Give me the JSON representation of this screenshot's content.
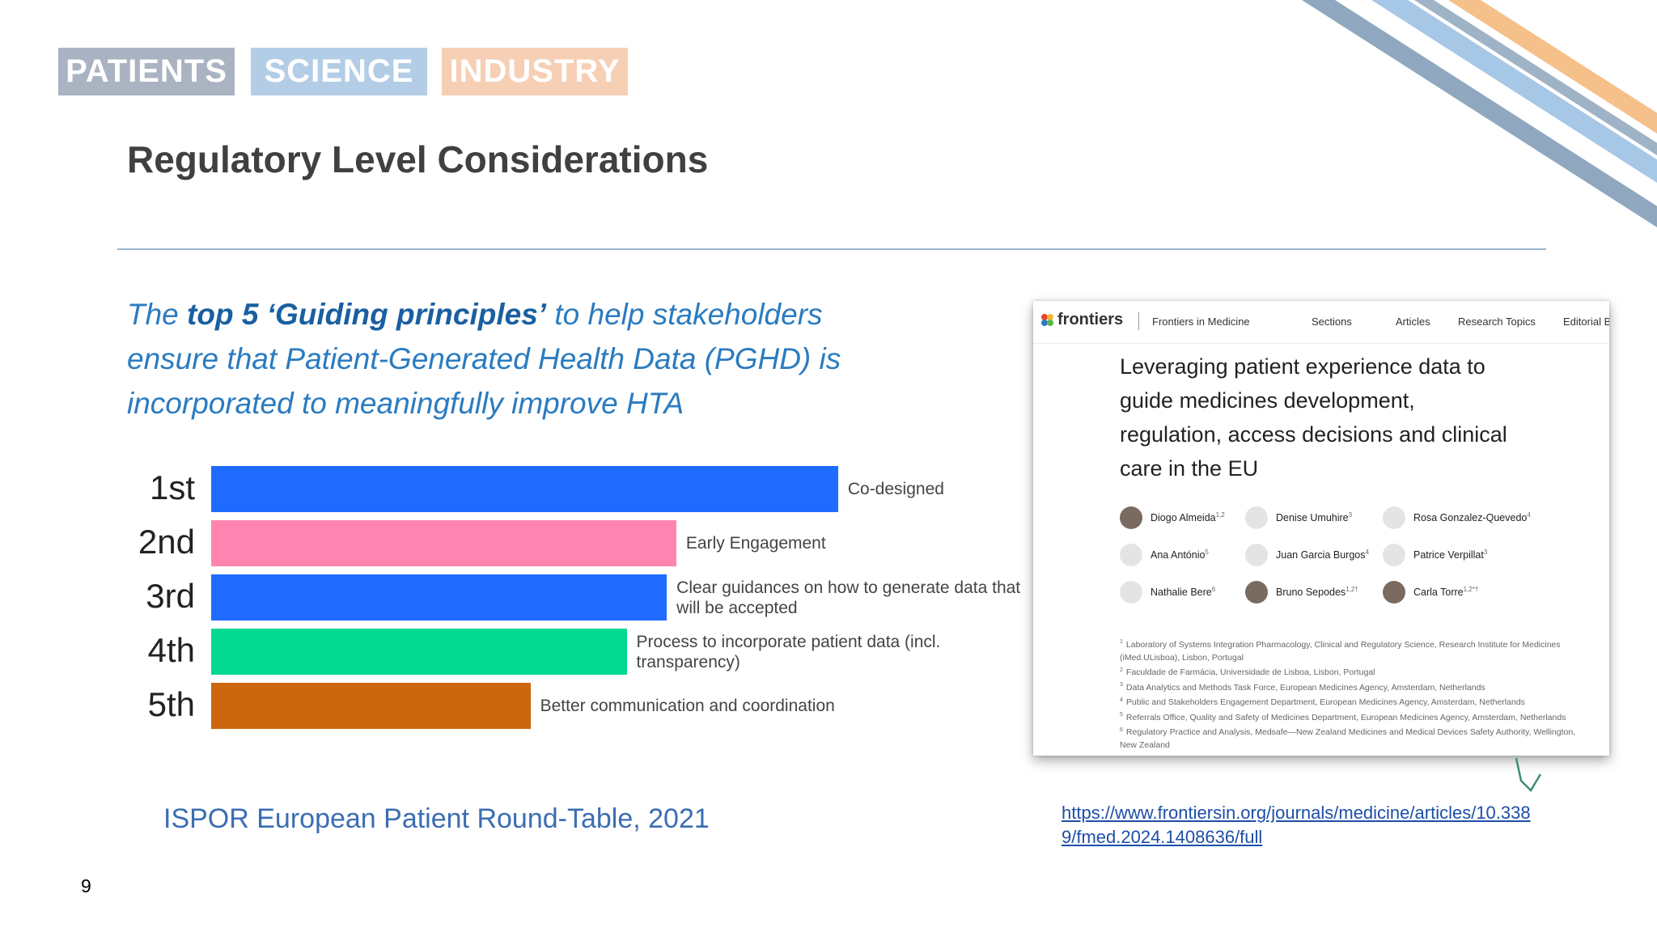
{
  "header": {
    "logos": [
      "PATIENTS",
      "SCIENCE",
      "INDUSTRY"
    ],
    "title": "Regulatory Level Considerations"
  },
  "intro": {
    "lines": [
      [
        "The ",
        "top 5 ‘Guiding principles’",
        " to help stakeholders"
      ],
      [
        "ensure that Patient-Generated Health Data (PGHD) is"
      ],
      [
        "incorporated to meaningfully improve HTA"
      ]
    ]
  },
  "chart_data": {
    "type": "bar",
    "categories": [
      "1st",
      "2nd",
      "3rd",
      "4th",
      "5th"
    ],
    "values": [
      593,
      440,
      431,
      393,
      302
    ],
    "colors": [
      "#1f6bff",
      "#ff85b0",
      "#1f6bff",
      "#00d98f",
      "#cc660f"
    ],
    "bar_labels": [
      "Co-designed",
      "Early Engagement",
      "Clear guidances on how to generate data that will be accepted",
      "Process to incorporate patient data (incl. transparency)",
      "Better communication and coordination"
    ],
    "xlim": [
      0,
      600
    ]
  },
  "source": "ISPOR European Patient Round-Table, 2021",
  "page_number": "9",
  "article": {
    "brand": "frontiers",
    "journal": "Frontiers in Medicine",
    "nav": [
      "Sections",
      "Articles",
      "Research Topics",
      "Editorial B"
    ],
    "title_lines": [
      "Leveraging patient experience data to",
      "guide medicines development,",
      "regulation, access decisions and clinical",
      "care in the EU"
    ],
    "authors": [
      {
        "name": "Diogo Almeida",
        "sup": "1,2"
      },
      {
        "name": "Denise Umuhire",
        "sup": "3"
      },
      {
        "name": "Rosa Gonzalez-Quevedo",
        "sup": "4"
      },
      {
        "name": "Ana António",
        "sup": "5"
      },
      {
        "name": "Juan Garcia Burgos",
        "sup": "4"
      },
      {
        "name": "Patrice Verpillat",
        "sup": "3"
      },
      {
        "name": "Nathalie Bere",
        "sup": "6"
      },
      {
        "name": "Bruno Sepodes",
        "sup": "1,2†"
      },
      {
        "name": "Carla Torre",
        "sup": "1,2*†"
      }
    ],
    "affiliations": [
      {
        "num": "1",
        "text": "Laboratory of Systems Integration Pharmacology, Clinical and Regulatory Science, Research Institute for Medicines (iMed.ULisboa), Lisbon, Portugal"
      },
      {
        "num": "2",
        "text": "Faculdade de Farmácia, Universidade de Lisboa, Lisbon, Portugal"
      },
      {
        "num": "3",
        "text": "Data Analytics and Methods Task Force, European Medicines Agency, Amsterdam, Netherlands"
      },
      {
        "num": "4",
        "text": "Public and Stakeholders Engagement Department, European Medicines Agency, Amsterdam, Netherlands"
      },
      {
        "num": "5",
        "text": "Referrals Office, Quality and Safety of Medicines Department, European Medicines Agency, Amsterdam, Netherlands"
      },
      {
        "num": "6",
        "text": "Regulatory Practice and Analysis, Medsafe—New Zealand Medicines and Medical Devices Safety Authority, Wellington, New Zealand"
      }
    ]
  },
  "link": {
    "lines": [
      "https://www.frontiersin.org/journals/medicine/articles/10.338",
      "9/fmed.2024.1408636/full"
    ]
  }
}
